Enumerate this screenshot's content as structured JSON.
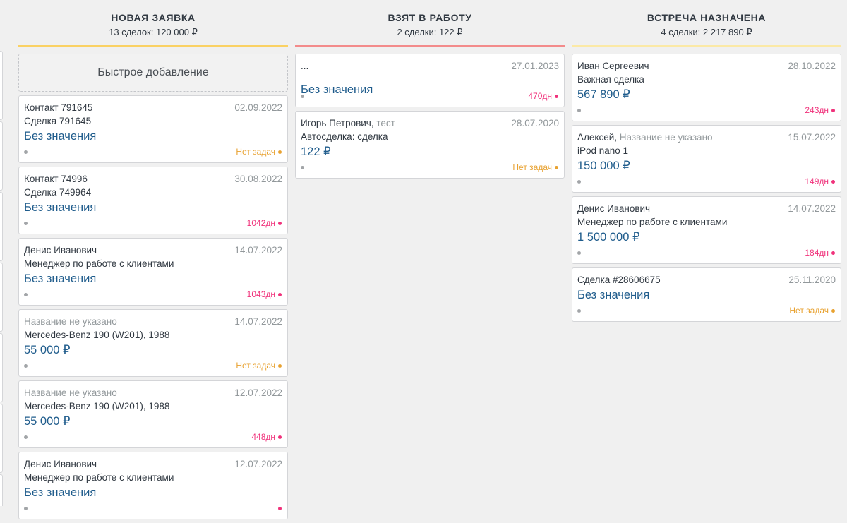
{
  "columns": [
    {
      "title": "НОВАЯ ЗАЯВКА",
      "summary": "13 сделок: 120 000 ₽",
      "line_color": "#fad163",
      "quick_add": "Быстрое добавление",
      "cards": [
        {
          "contact": "Контакт 791645",
          "contact_extra": "",
          "date": "02.09.2022",
          "deal": "Сделка 791645",
          "price": "Без значения",
          "task": "Нет задач",
          "task_type": "warn"
        },
        {
          "contact": "Контакт 74996",
          "contact_extra": "",
          "date": "30.08.2022",
          "deal": "Сделка 749964",
          "price": "Без значения",
          "task": "1042дн",
          "task_type": "late"
        },
        {
          "contact": "Денис Иванович",
          "contact_extra": "",
          "date": "14.07.2022",
          "deal": "Менеджер по работе с клиентами",
          "price": "Без значения",
          "task": "1043дн",
          "task_type": "late"
        },
        {
          "contact": "",
          "contact_extra": "Название не указано",
          "date": "14.07.2022",
          "deal": "Mercedes-Benz 190 (W201), 1988",
          "price": "55 000 ₽",
          "task": "Нет задач",
          "task_type": "warn"
        },
        {
          "contact": "",
          "contact_extra": "Название не указано",
          "date": "12.07.2022",
          "deal": "Mercedes-Benz 190 (W201), 1988",
          "price": "55 000 ₽",
          "task": "448дн",
          "task_type": "late"
        },
        {
          "contact": "Денис Иванович",
          "contact_extra": "",
          "date": "12.07.2022",
          "deal": "Менеджер по работе с клиентами",
          "price": "Без значения",
          "task": "",
          "task_type": "late"
        }
      ]
    },
    {
      "title": "ВЗЯТ В РАБОТУ",
      "summary": "2 сделки: 122 ₽",
      "line_color": "#f38b8b",
      "quick_add": "",
      "cards": [
        {
          "contact": "...",
          "contact_extra": "",
          "date": "27.01.2023",
          "deal": "",
          "price": "Без значения",
          "task": "470дн",
          "task_type": "late"
        },
        {
          "contact": "Игорь Петрович,",
          "contact_extra": "тест",
          "date": "28.07.2020",
          "deal": "Автосделка: сделка",
          "price": "122 ₽",
          "task": "Нет задач",
          "task_type": "warn"
        }
      ]
    },
    {
      "title": "ВСТРЕЧА НАЗНАЧЕНА",
      "summary": "4 сделки: 2 217 890 ₽",
      "line_color": "#fbe9a6",
      "quick_add": "",
      "cards": [
        {
          "contact": "Иван Сергеевич",
          "contact_extra": "",
          "date": "28.10.2022",
          "deal": "Важная сделка",
          "price": "567 890 ₽",
          "task": "243дн",
          "task_type": "late"
        },
        {
          "contact": "Алексей,",
          "contact_extra": "Название не указано",
          "date": "15.07.2022",
          "deal": "iPod nano 1",
          "price": "150 000 ₽",
          "task": "149дн",
          "task_type": "late"
        },
        {
          "contact": "Денис Иванович",
          "contact_extra": "",
          "date": "14.07.2022",
          "deal": "Менеджер по работе с клиентами",
          "price": "1 500 000 ₽",
          "task": "184дн",
          "task_type": "late"
        },
        {
          "contact": "Сделка #28606675",
          "contact_extra": "",
          "date": "25.11.2020",
          "deal": "",
          "price": "Без значения",
          "task": "Нет задач",
          "task_type": "warn"
        }
      ]
    }
  ]
}
